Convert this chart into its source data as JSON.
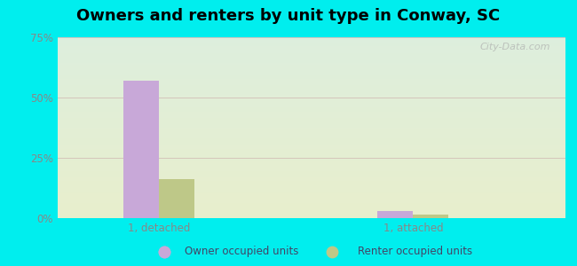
{
  "title": "Owners and renters by unit type in Conway, SC",
  "title_fontsize": 13,
  "categories": [
    "1, detached",
    "1, attached"
  ],
  "owner_values": [
    57,
    3
  ],
  "renter_values": [
    16,
    1.5
  ],
  "owner_color": "#c8a8d8",
  "renter_color": "#bec888",
  "ylim": [
    0,
    75
  ],
  "yticks": [
    0,
    25,
    50,
    75
  ],
  "yticklabels": [
    "0%",
    "25%",
    "50%",
    "75%"
  ],
  "background_color": "#00eeee",
  "plot_bg_top": "#ddeedd",
  "plot_bg_bottom": "#e8eecc",
  "watermark": "City-Data.com",
  "legend_labels": [
    "Owner occupied units",
    "Renter occupied units"
  ],
  "bar_width": 0.28,
  "group_positions": [
    1,
    3
  ]
}
